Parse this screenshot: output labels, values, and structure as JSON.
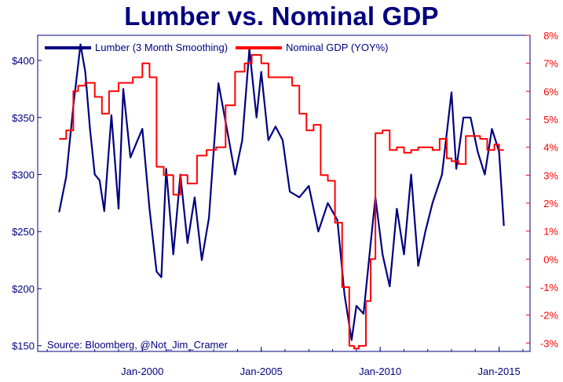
{
  "chart_data": {
    "type": "line",
    "title": "Lumber vs. Nominal GDP",
    "source": "Source: Bloomberg, @Not_Jim_Cramer",
    "x_ticks": [
      "Jan-2000",
      "Jan-2005",
      "Jan-2010",
      "Jan-2015"
    ],
    "y_left": {
      "ticks": [
        "$150",
        "$200",
        "$250",
        "$300",
        "$350",
        "$400"
      ],
      "ylim": [
        145,
        422
      ],
      "color": "#000080"
    },
    "y_right": {
      "ticks": [
        "-3%",
        "-2%",
        "-1%",
        "0%",
        "1%",
        "2%",
        "3%",
        "4%",
        "5%",
        "6%",
        "7%",
        "8%"
      ],
      "ylim": [
        -3.3,
        8.0
      ],
      "color": "#ff0000"
    },
    "xlim": [
      1995.6,
      2016.3
    ],
    "legend_placement": "top-left",
    "series": [
      {
        "name": "Lumber (3 Month Smoothing)",
        "axis": "left",
        "color": "#000080",
        "x": [
          1996.5,
          1996.8,
          1997.1,
          1997.4,
          1997.6,
          1997.8,
          1998.0,
          1998.2,
          1998.4,
          1998.7,
          1999.0,
          1999.2,
          1999.5,
          1999.8,
          2000.0,
          2000.3,
          2000.6,
          2000.8,
          2001.0,
          2001.3,
          2001.6,
          2001.9,
          2002.2,
          2002.5,
          2002.8,
          2003.2,
          2003.6,
          2003.9,
          2004.2,
          2004.5,
          2004.8,
          2005.0,
          2005.3,
          2005.6,
          2005.9,
          2006.2,
          2006.6,
          2007.0,
          2007.4,
          2007.8,
          2008.2,
          2008.5,
          2008.8,
          2009.0,
          2009.3,
          2009.6,
          2009.8,
          2010.1,
          2010.4,
          2010.7,
          2011.0,
          2011.3,
          2011.6,
          2011.9,
          2012.2,
          2012.6,
          2013.0,
          2013.2,
          2013.5,
          2013.8,
          2014.1,
          2014.4,
          2014.7,
          2015.0,
          2015.2
        ],
        "y": [
          267,
          298,
          360,
          414,
          390,
          340,
          300,
          295,
          268,
          352,
          270,
          375,
          315,
          330,
          340,
          270,
          215,
          210,
          305,
          230,
          300,
          240,
          280,
          225,
          262,
          380,
          335,
          300,
          330,
          410,
          350,
          390,
          330,
          342,
          330,
          285,
          280,
          290,
          250,
          275,
          260,
          195,
          155,
          185,
          178,
          240,
          280,
          230,
          202,
          270,
          230,
          300,
          220,
          250,
          275,
          300,
          372,
          305,
          350,
          350,
          320,
          300,
          340,
          320,
          255
        ]
      },
      {
        "name": "Nominal GDP (YOY%)",
        "axis": "right",
        "color": "#ff0000",
        "x": [
          1996.5,
          1996.8,
          1997.1,
          1997.3,
          1997.6,
          1998.0,
          1998.3,
          1998.6,
          1999.0,
          1999.3,
          1999.6,
          2000.0,
          2000.3,
          2000.6,
          2000.9,
          2001.3,
          2001.6,
          2001.9,
          2002.3,
          2002.7,
          2003.1,
          2003.5,
          2003.9,
          2004.3,
          2004.6,
          2005.0,
          2005.3,
          2005.6,
          2006.0,
          2006.3,
          2006.6,
          2006.9,
          2007.2,
          2007.5,
          2007.8,
          2008.1,
          2008.4,
          2008.7,
          2008.9,
          2009.1,
          2009.4,
          2009.6,
          2009.8,
          2010.1,
          2010.4,
          2010.7,
          2011.0,
          2011.3,
          2011.6,
          2011.9,
          2012.2,
          2012.5,
          2012.8,
          2013.0,
          2013.3,
          2013.6,
          2013.9,
          2014.2,
          2014.5,
          2014.8,
          2015.0,
          2015.2
        ],
        "y": [
          4.3,
          4.6,
          6.0,
          6.2,
          6.3,
          5.8,
          5.2,
          6.0,
          6.3,
          6.3,
          6.5,
          7.0,
          6.5,
          3.3,
          3.0,
          2.3,
          3.0,
          2.7,
          3.7,
          3.9,
          4.0,
          5.5,
          6.7,
          7.0,
          7.3,
          7.0,
          6.5,
          6.5,
          6.5,
          6.2,
          5.2,
          4.6,
          4.8,
          3.0,
          2.8,
          1.3,
          -1.0,
          -3.1,
          -3.2,
          -3.1,
          -1.5,
          0.0,
          4.5,
          4.6,
          3.9,
          4.0,
          3.8,
          3.9,
          4.0,
          4.0,
          3.9,
          4.3,
          3.6,
          3.5,
          3.4,
          4.4,
          4.4,
          4.3,
          3.9,
          4.1,
          3.9,
          3.9
        ]
      }
    ]
  }
}
